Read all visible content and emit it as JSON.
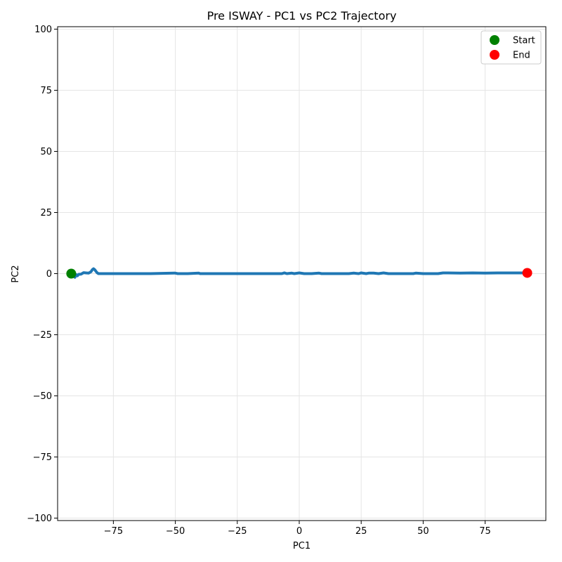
{
  "chart_data": {
    "type": "line",
    "title": "Pre ISWAY - PC1 vs PC2 Trajectory",
    "xlabel": "PC1",
    "ylabel": "PC2",
    "xlim": [
      -97.5,
      99.5
    ],
    "ylim": [
      -101,
      101
    ],
    "xticks": [
      -75,
      -50,
      -25,
      0,
      25,
      50,
      75
    ],
    "yticks": [
      -100,
      -75,
      -50,
      -25,
      0,
      25,
      50,
      75,
      100
    ],
    "grid": true,
    "legend_position": "top-right",
    "series": [
      {
        "color": "#1f77b4",
        "x": [
          -92,
          -91,
          -90.5,
          -90,
          -89.5,
          -89,
          -88,
          -87,
          -86,
          -85,
          -84,
          -83.5,
          -83,
          -82.5,
          -82,
          -81.5,
          -81,
          -80.5,
          -80,
          -79,
          -75,
          -60,
          -50.5,
          -50,
          -49,
          -48,
          -45,
          -40.5,
          -40,
          -30,
          -20,
          -10,
          -7,
          -6,
          -5,
          -3,
          -2,
          0,
          2,
          5,
          8,
          9,
          10,
          20,
          22,
          24,
          25,
          27,
          28,
          30,
          32,
          34,
          36,
          40,
          46,
          47,
          50,
          56,
          58,
          60,
          65,
          70,
          75,
          80,
          85,
          90,
          92
        ],
        "y": [
          0,
          -0.6,
          -1.5,
          -0.4,
          -0.9,
          -0.3,
          -0.2,
          0.4,
          0.3,
          0.2,
          0.8,
          1.6,
          2.0,
          1.6,
          0.9,
          0.3,
          0,
          0,
          0,
          0,
          0,
          0,
          0.2,
          0.2,
          0,
          0,
          0,
          0.2,
          0,
          0,
          0,
          0,
          0,
          0.3,
          0,
          0.2,
          0,
          0.3,
          0,
          0,
          0.2,
          0,
          0,
          0,
          0.2,
          0,
          0.3,
          0,
          0.2,
          0.2,
          0,
          0.3,
          0,
          0,
          0,
          0.2,
          0,
          0,
          0.3,
          0.3,
          0.2,
          0.3,
          0.2,
          0.3,
          0.3,
          0.3,
          0.3
        ]
      }
    ],
    "markers": [
      {
        "label": "Start",
        "x": -92,
        "y": 0,
        "color": "#008000"
      },
      {
        "label": "End",
        "x": 92,
        "y": 0.3,
        "color": "#ff0000"
      }
    ]
  }
}
